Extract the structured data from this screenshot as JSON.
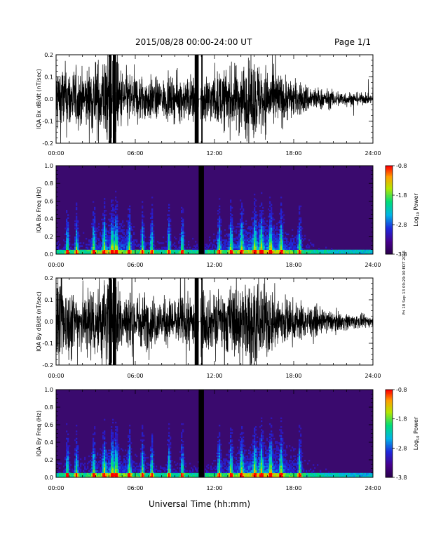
{
  "header": {
    "title": "2015/08/28  00:00-24:00 UT",
    "page": "Page 1/1"
  },
  "xlabel": "Universal Time (hh:mm)",
  "side_stamp": "Fri 18 Sep 13 09:29:00 EDT 2015",
  "colors": {
    "trace": "#000000",
    "background": "#ffffff",
    "spectrogram_bg": "#3a0a6e"
  },
  "colorbar": {
    "label": "Log",
    "label_sub": "10",
    "label_tail": " Power",
    "ticks": [
      "-0.8",
      "-1.8",
      "-2.8",
      "-3.8"
    ],
    "tick_values": [
      -0.8,
      -1.8,
      -2.8,
      -3.8
    ],
    "range": [
      -3.8,
      -0.8
    ]
  },
  "chart_data": [
    {
      "type": "line",
      "ylabel": "IQA Bx dB/dt (nT/sec)",
      "xlim": [
        0,
        24
      ],
      "ylim": [
        -0.2,
        0.2
      ],
      "xticks": [
        "00:00",
        "06:00",
        "12:00",
        "18:00",
        "24:00"
      ],
      "yticks": [
        "-0.2",
        "-0.1",
        "0.0",
        "0.1",
        "0.2"
      ],
      "amplitude_envelope_hours": [
        0,
        2,
        4,
        5,
        8,
        10,
        12,
        15,
        18,
        20,
        22,
        24
      ],
      "amplitude_envelope_values": [
        0.18,
        0.13,
        0.22,
        0.14,
        0.09,
        0.11,
        0.12,
        0.19,
        0.09,
        0.05,
        0.035,
        0.02
      ],
      "data_gap_hours": [
        10.8,
        10.95
      ]
    },
    {
      "type": "heatmap",
      "ylabel": "IQA Bx Freq (Hz)",
      "xlim": [
        0,
        24
      ],
      "ylim": [
        0,
        1.0
      ],
      "xticks": [
        "00:00",
        "06:00",
        "12:00",
        "18:00",
        "24:00"
      ],
      "yticks": [
        "0.0",
        "0.2",
        "0.4",
        "0.6",
        "0.8",
        "1.0"
      ],
      "zlim": [
        -3.8,
        -0.8
      ],
      "data_gap_hours": [
        10.8,
        11.2
      ]
    },
    {
      "type": "line",
      "ylabel": "IQA By dB/dt (nT/sec)",
      "xlim": [
        0,
        24
      ],
      "ylim": [
        -0.2,
        0.2
      ],
      "xticks": [
        "00:00",
        "06:00",
        "12:00",
        "18:00",
        "24:00"
      ],
      "yticks": [
        "-0.2",
        "-0.1",
        "0.0",
        "0.1",
        "0.2"
      ],
      "amplitude_envelope_hours": [
        0,
        2,
        4,
        5,
        8,
        10,
        12,
        15,
        18,
        20,
        22,
        24
      ],
      "amplitude_envelope_values": [
        0.2,
        0.15,
        0.24,
        0.16,
        0.11,
        0.12,
        0.14,
        0.21,
        0.1,
        0.06,
        0.04,
        0.025
      ],
      "data_gap_hours": [
        10.8,
        10.95
      ]
    },
    {
      "type": "heatmap",
      "ylabel": "IQA By Freq (Hz)",
      "xlim": [
        0,
        24
      ],
      "ylim": [
        0,
        1.0
      ],
      "xticks": [
        "00:00",
        "06:00",
        "12:00",
        "18:00",
        "24:00"
      ],
      "yticks": [
        "0.0",
        "0.2",
        "0.4",
        "0.6",
        "0.8",
        "1.0"
      ],
      "zlim": [
        -3.8,
        -0.8
      ],
      "data_gap_hours": [
        10.8,
        11.2
      ]
    }
  ]
}
